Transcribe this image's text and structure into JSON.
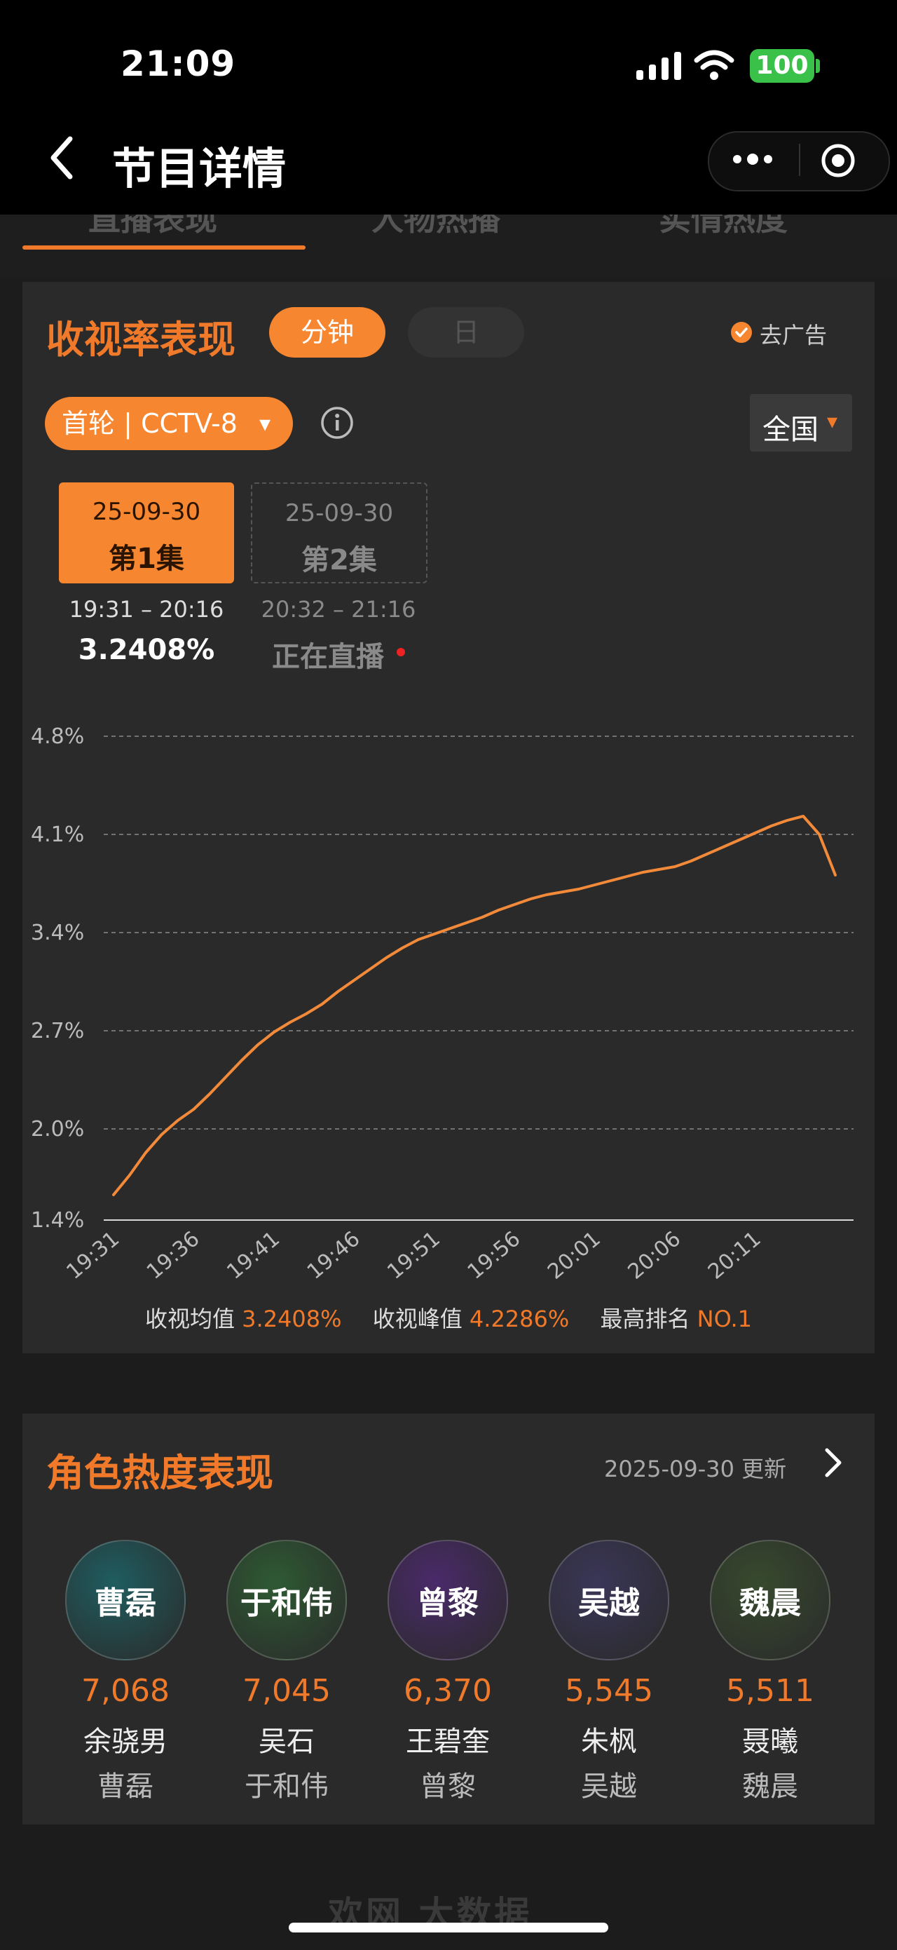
{
  "status_bar": {
    "time": "21:09",
    "battery": "100"
  },
  "nav": {
    "title": "节目详情"
  },
  "tabs": [
    "直播表现",
    "人物热播",
    "实情热度"
  ],
  "rating": {
    "title": "收视率表现",
    "pill_minute": "分钟",
    "pill_day": "日",
    "no_ad": "去广告",
    "channel": "首轮 | CCTV-8",
    "channel_caret": "▾",
    "region": "全国",
    "region_caret": "▾"
  },
  "episodes": [
    {
      "date": "25-09-30",
      "name": "第1集",
      "time": "19:31 – 20:16",
      "rate": "3.2408%"
    },
    {
      "date": "25-09-30",
      "name": "第2集",
      "time": "20:32 – 21:16",
      "status": "正在直播"
    }
  ],
  "chart_data": {
    "type": "line",
    "title": "",
    "xlabel": "",
    "ylabel": "",
    "y_ticks": [
      "1.4%",
      "2.0%",
      "2.7%",
      "3.4%",
      "4.1%",
      "4.8%"
    ],
    "ylim": [
      1.35,
      4.75
    ],
    "x_ticks": [
      "19:31",
      "19:36",
      "19:41",
      "19:46",
      "19:51",
      "19:56",
      "20:01",
      "20:06",
      "20:11"
    ],
    "grid": true,
    "series": [
      {
        "x": [
          "19:31",
          "19:32",
          "19:33",
          "19:34",
          "19:35",
          "19:36",
          "19:37",
          "19:38",
          "19:39",
          "19:40",
          "19:41",
          "19:42",
          "19:43",
          "19:44",
          "19:45",
          "19:46",
          "19:47",
          "19:48",
          "19:49",
          "19:50",
          "19:51",
          "19:52",
          "19:53",
          "19:54",
          "19:55",
          "19:56",
          "19:57",
          "19:58",
          "19:59",
          "20:00",
          "20:01",
          "20:02",
          "20:03",
          "20:04",
          "20:05",
          "20:06",
          "20:07",
          "20:08",
          "20:09",
          "20:10",
          "20:11",
          "20:12",
          "20:13",
          "20:14",
          "20:15",
          "20:16"
        ],
        "values": [
          1.53,
          1.67,
          1.83,
          1.96,
          2.06,
          2.14,
          2.25,
          2.37,
          2.49,
          2.6,
          2.69,
          2.76,
          2.82,
          2.89,
          2.98,
          3.06,
          3.14,
          3.22,
          3.29,
          3.35,
          3.39,
          3.43,
          3.47,
          3.51,
          3.56,
          3.6,
          3.64,
          3.67,
          3.69,
          3.71,
          3.74,
          3.77,
          3.8,
          3.83,
          3.85,
          3.87,
          3.91,
          3.96,
          4.01,
          4.06,
          4.11,
          4.16,
          4.2,
          4.23,
          4.1,
          3.81
        ]
      }
    ]
  },
  "summary": {
    "avg_label": "收视均值",
    "avg_value": "3.2408%",
    "peak_label": "收视峰值",
    "peak_value": "4.2286%",
    "rank_label": "最高排名",
    "rank_value": "NO.1"
  },
  "roles": {
    "title": "角色热度表现",
    "updated": "2025-09-30 更新",
    "items": [
      {
        "role": "曹磊",
        "score": "7,068",
        "actor": "余骁男",
        "char": "曹磊",
        "color": "#1f5d60"
      },
      {
        "role": "于和伟",
        "score": "7,045",
        "actor": "吴石",
        "char": "于和伟",
        "color": "#2e5a33"
      },
      {
        "role": "曾黎",
        "score": "6,370",
        "actor": "王碧奎",
        "char": "曾黎",
        "color": "#4a2a6a"
      },
      {
        "role": "吴越",
        "score": "5,545",
        "actor": "朱枫",
        "char": "吴越",
        "color": "#3a3658"
      },
      {
        "role": "魏晨",
        "score": "5,511",
        "actor": "聂曦",
        "char": "魏晨",
        "color": "#374a2e"
      }
    ]
  },
  "watermark": "欢网 大数据",
  "colors": {
    "accent": "#f07a2a",
    "background": "#1c1c1c",
    "card": "#2a2a2a"
  }
}
